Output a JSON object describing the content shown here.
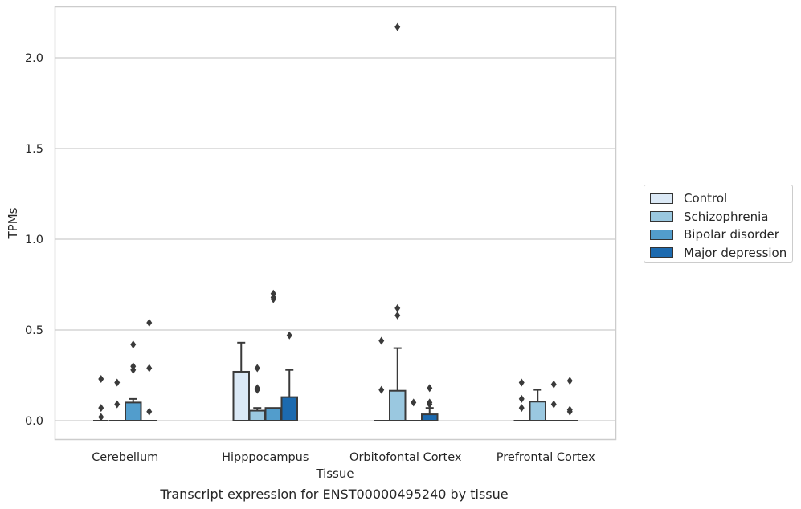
{
  "caption": "Transcript expression for ENST00000495240 by tissue",
  "chart_data": {
    "type": "box",
    "xlabel": "Tissue",
    "ylabel": "TPMs",
    "ylim": [
      -0.1,
      2.28
    ],
    "yticks": [
      "0.0",
      "0.5",
      "1.0",
      "1.5",
      "2.0"
    ],
    "grid": "horizontal",
    "legend_position": "right",
    "categories": [
      "Cerebellum",
      "Hipppocampus",
      "Orbitofontal Cortex",
      "Prefrontal Cortex"
    ],
    "series": [
      {
        "name": "Control",
        "color": "#dbe9f6",
        "boxes": [
          {
            "q1": 0,
            "median": 0,
            "q3": 0,
            "whisker_low": 0,
            "whisker_high": 0,
            "outliers": [
              0.23,
              0.07,
              0.02
            ]
          },
          {
            "q1": 0,
            "median": 0,
            "q3": 0.27,
            "whisker_low": 0,
            "whisker_high": 0.43,
            "outliers": []
          },
          {
            "q1": 0,
            "median": 0,
            "q3": 0,
            "whisker_low": 0,
            "whisker_high": 0,
            "outliers": [
              0.44,
              0.17
            ]
          },
          {
            "q1": 0,
            "median": 0,
            "q3": 0,
            "whisker_low": 0,
            "whisker_high": 0,
            "outliers": [
              0.21,
              0.12,
              0.07
            ]
          }
        ]
      },
      {
        "name": "Schizophrenia",
        "color": "#9ac8e0",
        "boxes": [
          {
            "q1": 0,
            "median": 0,
            "q3": 0,
            "whisker_low": 0,
            "whisker_high": 0,
            "outliers": [
              0.21,
              0.09
            ]
          },
          {
            "q1": 0,
            "median": 0,
            "q3": 0.055,
            "whisker_low": 0,
            "whisker_high": 0.07,
            "outliers": [
              0.29,
              0.18,
              0.17
            ]
          },
          {
            "q1": 0,
            "median": 0,
            "q3": 0.165,
            "whisker_low": 0,
            "whisker_high": 0.4,
            "outliers": [
              2.17,
              0.62,
              0.58
            ]
          },
          {
            "q1": 0,
            "median": 0,
            "q3": 0.105,
            "whisker_low": 0,
            "whisker_high": 0.17,
            "outliers": []
          }
        ]
      },
      {
        "name": "Bipolar disorder",
        "color": "#529dcc",
        "boxes": [
          {
            "q1": 0,
            "median": 0,
            "q3": 0.1,
            "whisker_low": 0,
            "whisker_high": 0.12,
            "outliers": [
              0.42,
              0.3,
              0.28
            ]
          },
          {
            "q1": 0,
            "median": 0,
            "q3": 0.07,
            "whisker_low": 0,
            "whisker_high": 0.07,
            "outliers": [
              0.7,
              0.68,
              0.67
            ]
          },
          {
            "q1": 0,
            "median": 0,
            "q3": 0,
            "whisker_low": 0,
            "whisker_high": 0,
            "outliers": [
              0.1
            ]
          },
          {
            "q1": 0,
            "median": 0,
            "q3": 0,
            "whisker_low": 0,
            "whisker_high": 0,
            "outliers": [
              0.2,
              0.09
            ]
          }
        ]
      },
      {
        "name": "Major depression",
        "color": "#1c6aaf",
        "boxes": [
          {
            "q1": 0,
            "median": 0,
            "q3": 0,
            "whisker_low": 0,
            "whisker_high": 0,
            "outliers": [
              0.54,
              0.29,
              0.05
            ]
          },
          {
            "q1": 0,
            "median": 0,
            "q3": 0.13,
            "whisker_low": 0,
            "whisker_high": 0.28,
            "outliers": [
              0.47
            ]
          },
          {
            "q1": 0,
            "median": 0,
            "q3": 0.035,
            "whisker_low": 0,
            "whisker_high": 0.07,
            "outliers": [
              0.18,
              0.1,
              0.09
            ]
          },
          {
            "q1": 0,
            "median": 0,
            "q3": 0,
            "whisker_low": 0,
            "whisker_high": 0,
            "outliers": [
              0.22,
              0.06,
              0.05
            ]
          }
        ]
      }
    ]
  }
}
